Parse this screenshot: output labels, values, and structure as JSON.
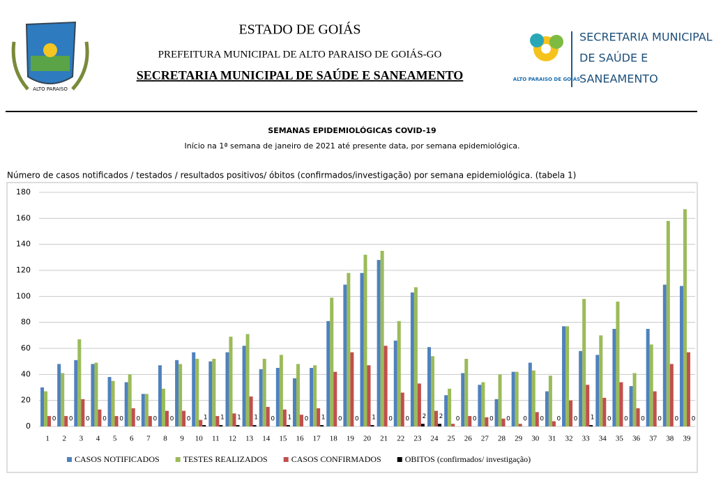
{
  "header": {
    "state": "ESTADO DE GOIÁS",
    "city": "PREFEITURA MUNICIPAL DE ALTO PARAISO DE GOIÁS-GO",
    "department": "SECRETARIA MUNICIPAL DE SAÚDE E SANEAMENTO",
    "left_logo_text": "ALTO PARAISO",
    "right_logo_small": "ALTO PARAISO DE GOIÁS",
    "right_logo_lines": [
      "SECRETARIA MUNICIPAL",
      "DE SAÚDE E",
      "SANEAMENTO"
    ]
  },
  "caption": "Número de casos notificados / testados / resultados positivos/ óbitos (confirmados/investigação) por semana epidemiológica. (tabela 1)",
  "chart_data": {
    "type": "bar",
    "title": "SEMANAS EPIDEMIOLÓGICAS COVID-19",
    "subtitle": "Início na 1ª semana de janeiro de 2021 até presente data, por semana epidemiológica.",
    "categories": [
      "1",
      "2",
      "3",
      "4",
      "5",
      "6",
      "7",
      "8",
      "9",
      "10",
      "11",
      "12",
      "13",
      "14",
      "15",
      "16",
      "17",
      "18",
      "19",
      "20",
      "21",
      "22",
      "23",
      "24",
      "25",
      "26",
      "27",
      "28",
      "29",
      "30",
      "31",
      "32",
      "33",
      "34",
      "35",
      "36",
      "37",
      "38",
      "39"
    ],
    "series": [
      {
        "name": "CASOS NOTIFICADOS",
        "color": "#4f81bd",
        "values": [
          30,
          48,
          51,
          48,
          38,
          34,
          25,
          47,
          51,
          57,
          50,
          57,
          62,
          44,
          45,
          37,
          45,
          81,
          109,
          118,
          128,
          66,
          103,
          61,
          24,
          41,
          32,
          21,
          42,
          49,
          27,
          77,
          58,
          55,
          75,
          31,
          75,
          109,
          108
        ]
      },
      {
        "name": "TESTES REALIZADOS",
        "color": "#9bbb59",
        "values": [
          27,
          41,
          67,
          49,
          35,
          40,
          25,
          29,
          48,
          52,
          52,
          69,
          71,
          52,
          55,
          48,
          47,
          99,
          118,
          132,
          135,
          81,
          107,
          54,
          29,
          52,
          34,
          40,
          42,
          43,
          39,
          77,
          98,
          70,
          96,
          41,
          63,
          158,
          167
        ]
      },
      {
        "name": "CASOS CONFIRMADOS",
        "color": "#c0504d",
        "values": [
          8,
          8,
          21,
          13,
          8,
          14,
          8,
          12,
          12,
          5,
          8,
          10,
          23,
          15,
          13,
          9,
          14,
          42,
          57,
          47,
          62,
          26,
          33,
          12,
          2,
          8,
          7,
          6,
          2,
          11,
          4,
          20,
          32,
          22,
          34,
          14,
          27,
          48,
          57
        ]
      },
      {
        "name": "OBITOS (confirmados/ investigação)",
        "color": "#000000",
        "values": [
          0,
          0,
          0,
          0,
          0,
          0,
          0,
          0,
          0,
          1,
          1,
          1,
          1,
          0,
          1,
          0,
          1,
          0,
          0,
          1,
          0,
          0,
          2,
          2,
          0,
          0,
          0,
          0,
          0,
          0,
          0,
          0,
          1,
          0,
          0,
          0,
          0,
          0,
          0
        ]
      }
    ],
    "ylim": [
      0,
      180
    ],
    "yticks": [
      0,
      20,
      40,
      60,
      80,
      100,
      120,
      140,
      160,
      180
    ],
    "grid": true
  }
}
